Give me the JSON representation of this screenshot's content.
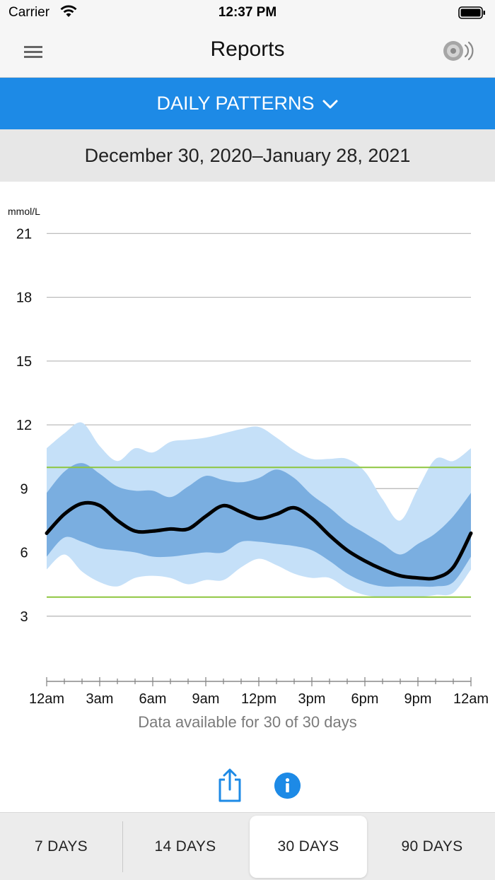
{
  "status_bar": {
    "carrier": "Carrier",
    "time": "12:37 PM"
  },
  "nav": {
    "title": "Reports"
  },
  "report_selector": {
    "label": "DAILY PATTERNS"
  },
  "date_range": "December 30, 2020–January 28, 2021",
  "chart_data": {
    "type": "area",
    "title": "",
    "ylabel": "mmol/L",
    "ylim": [
      0,
      21
    ],
    "y_ticks": [
      3,
      6,
      9,
      12,
      15,
      18,
      21
    ],
    "x_tick_labels": [
      "12am",
      "3am",
      "6am",
      "9am",
      "12pm",
      "3pm",
      "6pm",
      "9pm",
      "12am"
    ],
    "x_hours": [
      0,
      1,
      2,
      3,
      4,
      5,
      6,
      7,
      8,
      9,
      10,
      11,
      12,
      13,
      14,
      15,
      16,
      17,
      18,
      19,
      20,
      21,
      22,
      23,
      24
    ],
    "target_range": {
      "low": 3.9,
      "high": 10.0
    },
    "series": [
      {
        "name": "p95",
        "values": [
          10.9,
          11.6,
          12.1,
          11.0,
          10.3,
          10.9,
          10.7,
          11.2,
          11.3,
          11.4,
          11.6,
          11.8,
          11.9,
          11.4,
          10.8,
          10.4,
          10.4,
          10.4,
          9.8,
          8.5,
          7.5,
          9.0,
          10.4,
          10.3,
          10.9
        ]
      },
      {
        "name": "p75",
        "values": [
          8.8,
          9.8,
          10.2,
          9.7,
          9.1,
          8.9,
          8.9,
          8.6,
          9.1,
          9.6,
          9.4,
          9.3,
          9.5,
          9.9,
          9.5,
          8.7,
          8.1,
          7.4,
          6.9,
          6.4,
          5.9,
          6.4,
          6.9,
          7.7,
          8.8
        ]
      },
      {
        "name": "median",
        "values": [
          6.9,
          7.8,
          8.3,
          8.2,
          7.5,
          7.0,
          7.0,
          7.1,
          7.1,
          7.7,
          8.2,
          7.9,
          7.6,
          7.8,
          8.1,
          7.6,
          6.8,
          6.1,
          5.6,
          5.2,
          4.9,
          4.8,
          4.8,
          5.3,
          6.9
        ]
      },
      {
        "name": "p25",
        "values": [
          5.8,
          6.7,
          6.5,
          6.2,
          6.1,
          6.0,
          5.8,
          5.8,
          5.9,
          6.0,
          6.0,
          6.5,
          6.5,
          6.4,
          6.3,
          6.1,
          5.6,
          5.0,
          4.6,
          4.4,
          4.4,
          4.4,
          4.4,
          4.6,
          5.8
        ]
      },
      {
        "name": "p5",
        "values": [
          5.2,
          5.9,
          5.1,
          4.6,
          4.4,
          4.8,
          4.9,
          4.8,
          4.5,
          4.7,
          4.7,
          5.3,
          5.7,
          5.4,
          5.0,
          4.8,
          4.8,
          4.3,
          4.0,
          3.9,
          3.9,
          3.9,
          4.0,
          4.1,
          5.2
        ]
      }
    ],
    "colors": {
      "outer_band": "#c5e0f8",
      "inner_band": "#7aaee0",
      "median": "#000000",
      "target": "#8dc63f",
      "grid": "#b5b5b5"
    }
  },
  "availability_text": "Data available for 30 of 30 days",
  "actions": {
    "share_icon": "share-icon",
    "info_icon": "info-icon"
  },
  "tabs": [
    {
      "label": "7 DAYS",
      "active": false
    },
    {
      "label": "14 DAYS",
      "active": false
    },
    {
      "label": "30 DAYS",
      "active": true
    },
    {
      "label": "90 DAYS",
      "active": false
    }
  ],
  "accent_color": "#1d8ae6"
}
